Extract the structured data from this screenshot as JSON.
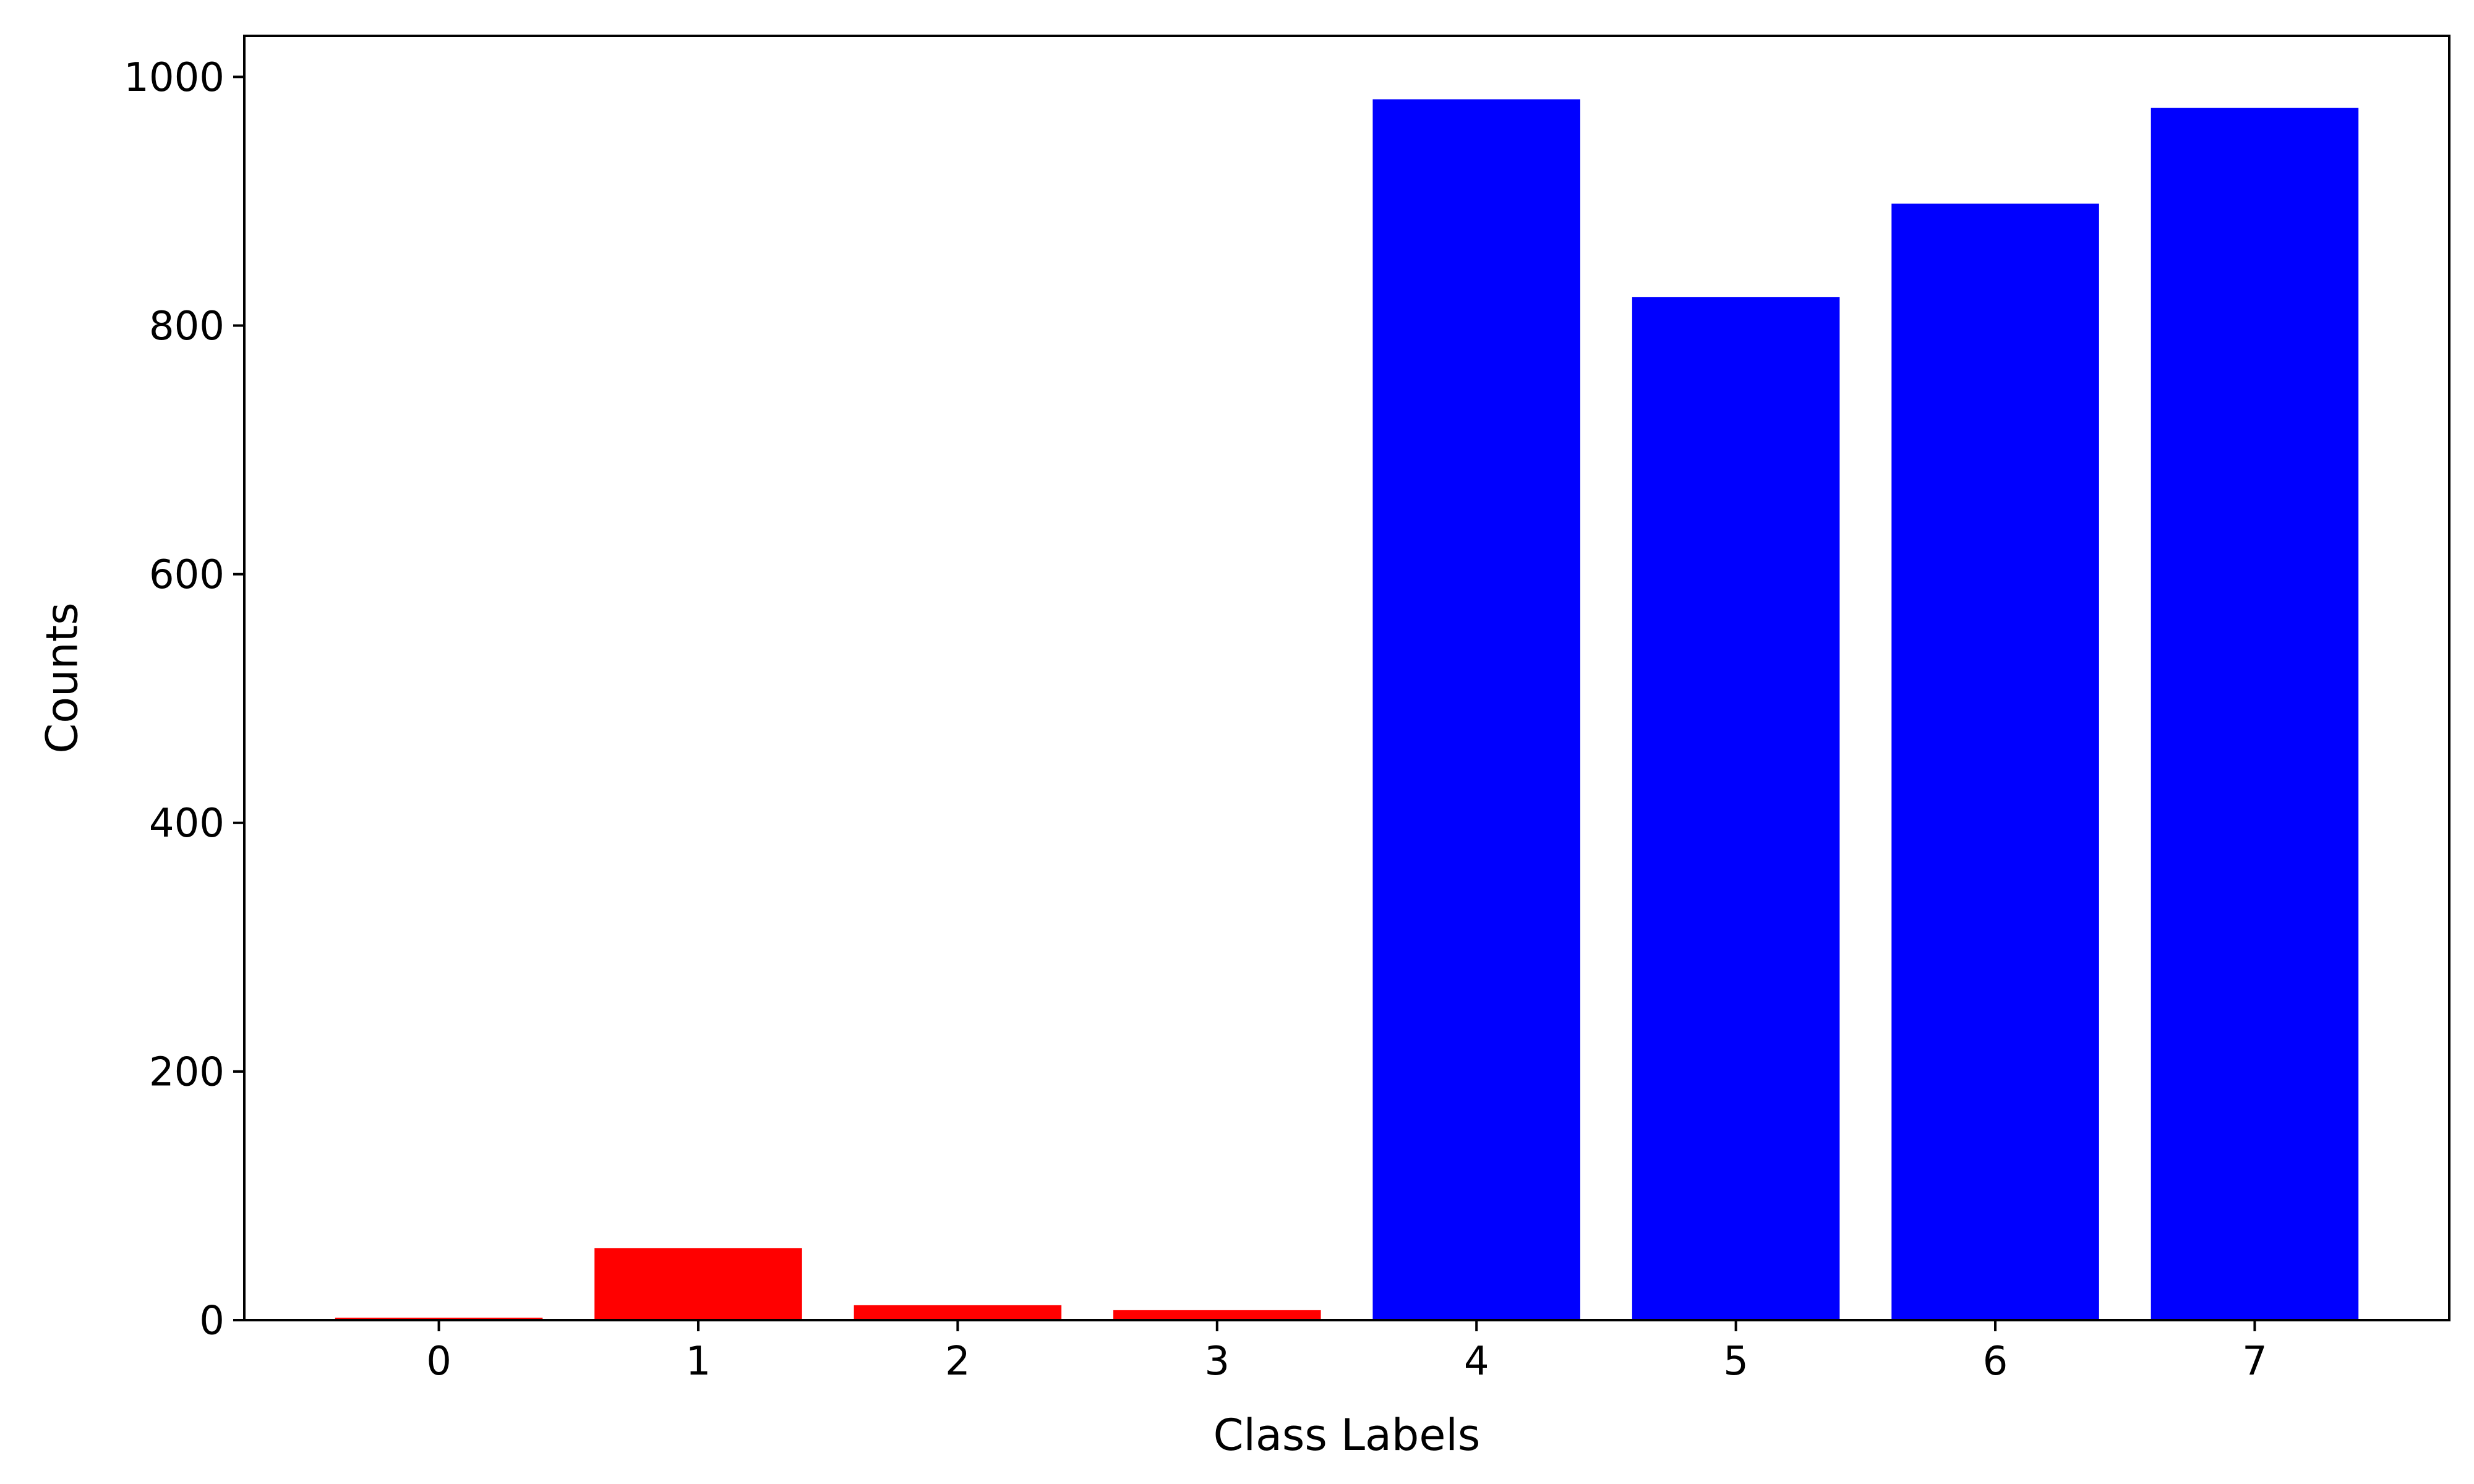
{
  "chart_data": {
    "type": "bar",
    "title": "",
    "xlabel": "Class Labels",
    "ylabel": "Counts",
    "categories": [
      "0",
      "1",
      "2",
      "3",
      "4",
      "5",
      "6",
      "7"
    ],
    "values": [
      2,
      58,
      12,
      8,
      982,
      823,
      898,
      975
    ],
    "bar_colors": [
      "#ff0000",
      "#ff0000",
      "#ff0000",
      "#ff0000",
      "#0000ff",
      "#0000ff",
      "#0000ff",
      "#0000ff"
    ],
    "yticks": [
      0,
      200,
      400,
      600,
      800,
      1000
    ],
    "ylim": [
      0,
      1033
    ],
    "grid": false
  }
}
